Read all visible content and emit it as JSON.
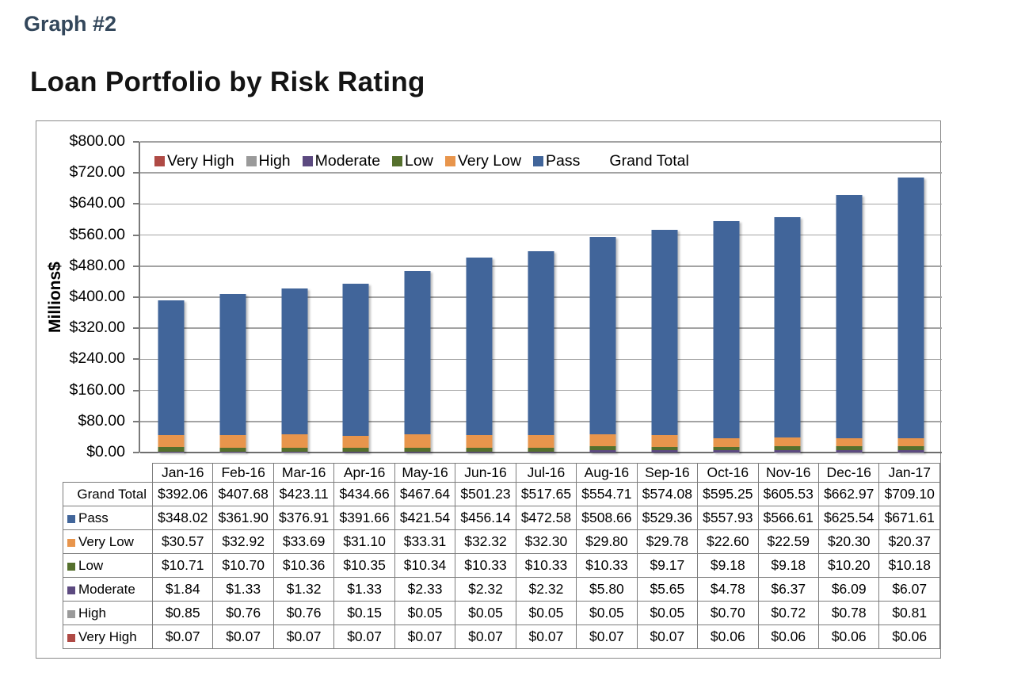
{
  "page": {
    "graph_label": "Graph #2"
  },
  "chart_data": {
    "type": "bar",
    "stacked": true,
    "title": "Loan Portfolio by Risk Rating",
    "ylabel": "Millions$",
    "ylim": [
      0,
      800
    ],
    "ytick_step": 80,
    "ytick_prefix": "$",
    "grid": true,
    "legend_position": "top-inside",
    "categories": [
      "Jan-16",
      "Feb-16",
      "Mar-16",
      "Apr-16",
      "May-16",
      "Jun-16",
      "Jul-16",
      "Aug-16",
      "Sep-16",
      "Oct-16",
      "Nov-16",
      "Dec-16",
      "Jan-17"
    ],
    "series": [
      {
        "name": "Very High",
        "color": "#AF4A45",
        "values": [
          0.07,
          0.07,
          0.07,
          0.07,
          0.07,
          0.07,
          0.07,
          0.07,
          0.07,
          0.06,
          0.06,
          0.06,
          0.06
        ]
      },
      {
        "name": "High",
        "color": "#9A9A9A",
        "values": [
          0.85,
          0.76,
          0.76,
          0.15,
          0.05,
          0.05,
          0.05,
          0.05,
          0.05,
          0.7,
          0.72,
          0.78,
          0.81
        ]
      },
      {
        "name": "Moderate",
        "color": "#5C4A80",
        "values": [
          1.84,
          1.33,
          1.32,
          1.33,
          2.33,
          2.32,
          2.32,
          5.8,
          5.65,
          4.78,
          6.37,
          6.09,
          6.07
        ]
      },
      {
        "name": "Low",
        "color": "#55702D",
        "values": [
          10.71,
          10.7,
          10.36,
          10.35,
          10.34,
          10.33,
          10.33,
          10.33,
          9.17,
          9.18,
          9.18,
          10.2,
          10.18
        ]
      },
      {
        "name": "Very Low",
        "color": "#E8954C",
        "values": [
          30.57,
          32.92,
          33.69,
          31.1,
          33.31,
          32.32,
          32.3,
          29.8,
          29.78,
          22.6,
          22.59,
          20.3,
          20.37
        ]
      },
      {
        "name": "Pass",
        "color": "#41659A",
        "values": [
          348.02,
          361.9,
          376.91,
          391.66,
          421.54,
          456.14,
          472.58,
          508.66,
          529.36,
          557.93,
          566.61,
          625.54,
          671.61
        ]
      }
    ],
    "grand_total": {
      "name": "Grand Total",
      "values": [
        392.06,
        407.68,
        423.11,
        434.66,
        467.64,
        501.23,
        517.65,
        554.71,
        574.08,
        595.25,
        605.53,
        662.97,
        709.1
      ]
    },
    "legend": [
      "Very High",
      "High",
      "Moderate",
      "Low",
      "Very Low",
      "Pass",
      "Grand Total"
    ]
  },
  "table": {
    "currency_prefix": "$",
    "row_order": [
      "Grand Total",
      "Pass",
      "Very Low",
      "Low",
      "Moderate",
      "High",
      "Very High"
    ]
  }
}
